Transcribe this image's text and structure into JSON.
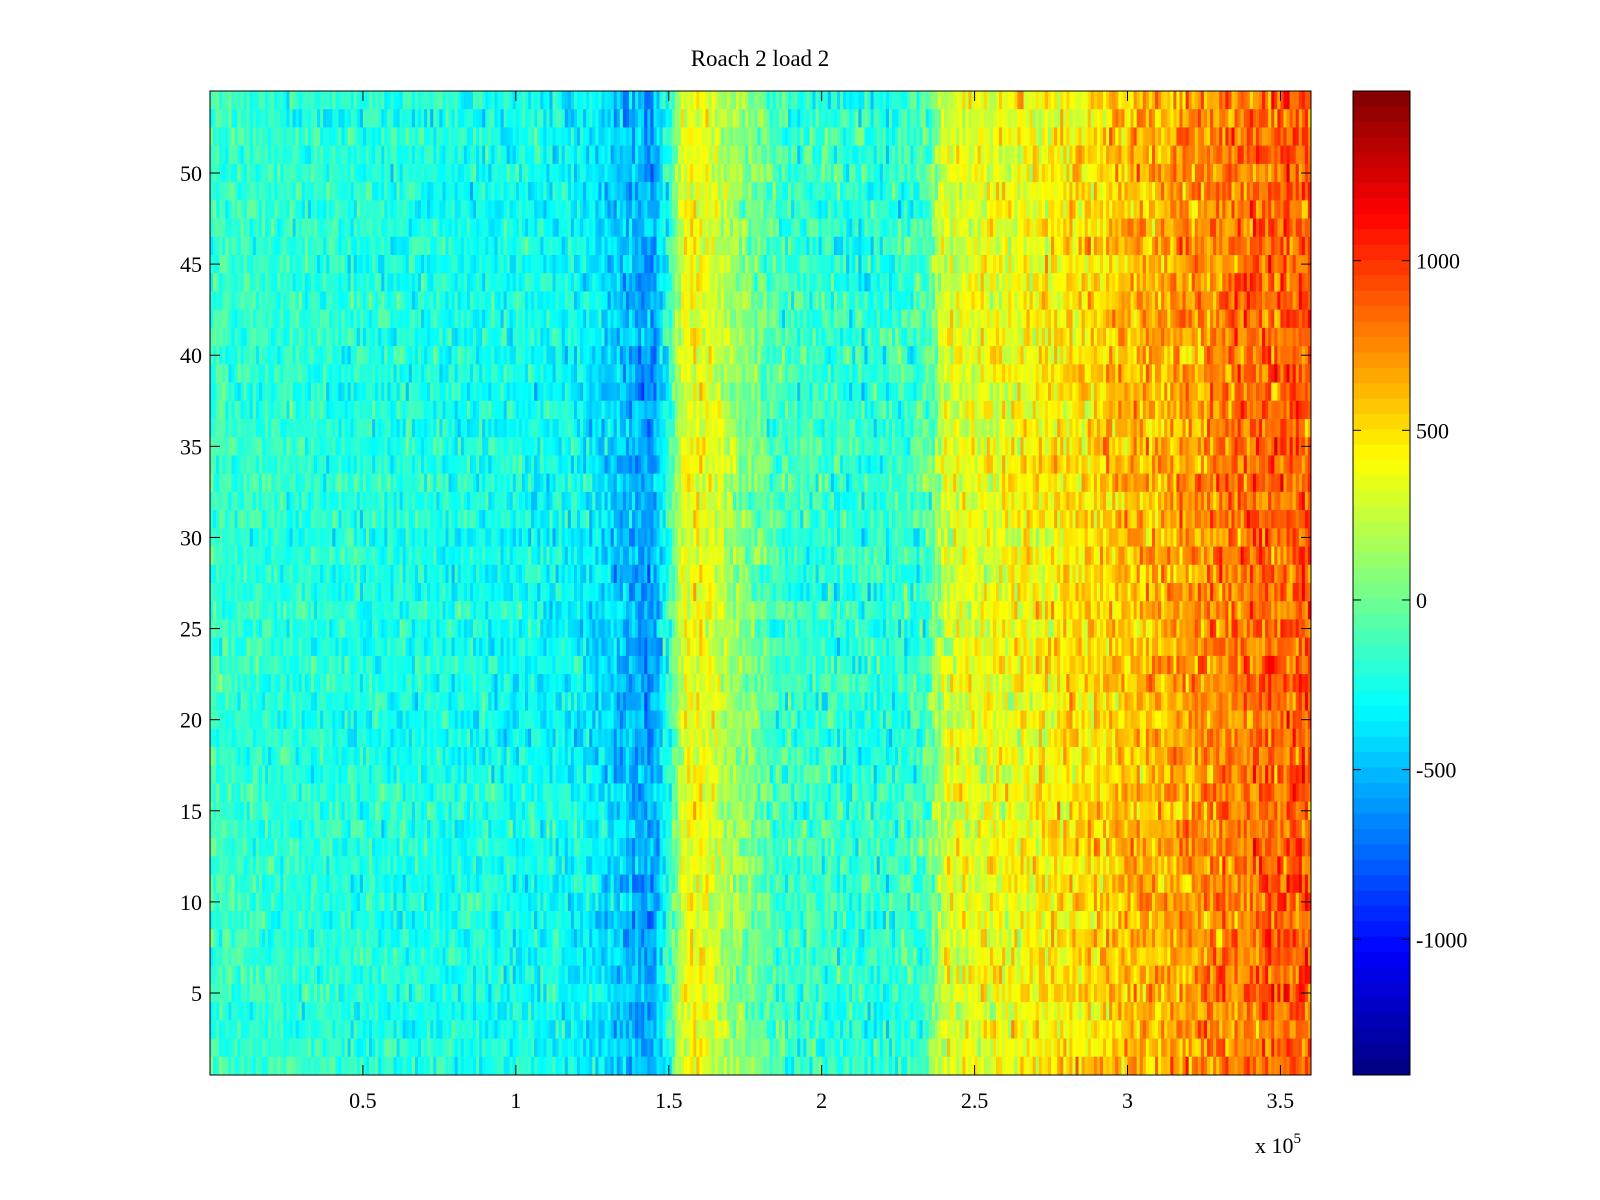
{
  "chart_data": {
    "type": "heatmap",
    "title": "Roach 2 load 2",
    "xlabel": "",
    "ylabel": "",
    "x_exponent_label": "x 10",
    "x_exponent_power": "5",
    "xlim": [
      0,
      3.6
    ],
    "ylim": [
      0.5,
      54.5
    ],
    "xticks": [
      0.5,
      1,
      1.5,
      2,
      2.5,
      3,
      3.5
    ],
    "xtick_labels": [
      "0.5",
      "1",
      "1.5",
      "2",
      "2.5",
      "3",
      "3.5"
    ],
    "yticks": [
      5,
      10,
      15,
      20,
      25,
      30,
      35,
      40,
      45,
      50
    ],
    "ytick_labels": [
      "5",
      "10",
      "15",
      "20",
      "25",
      "30",
      "35",
      "40",
      "45",
      "50"
    ],
    "rows": 54,
    "colormap": "jet",
    "clim": [
      -1400,
      1500
    ],
    "colorbar_ticks": [
      1000,
      500,
      0,
      -500,
      -1000
    ],
    "colorbar_tick_labels": [
      "1000",
      "500",
      "0",
      "-500",
      "-1000"
    ],
    "profile": [
      {
        "x": 0.0,
        "mean": -150
      },
      {
        "x": 0.3,
        "mean": -200
      },
      {
        "x": 0.6,
        "mean": -230
      },
      {
        "x": 0.9,
        "mean": -260
      },
      {
        "x": 1.2,
        "mean": -300
      },
      {
        "x": 1.35,
        "mean": -480
      },
      {
        "x": 1.45,
        "mean": -600
      },
      {
        "x": 1.5,
        "mean": -200
      },
      {
        "x": 1.55,
        "mean": 350
      },
      {
        "x": 1.6,
        "mean": 400
      },
      {
        "x": 1.7,
        "mean": 150
      },
      {
        "x": 1.85,
        "mean": -120
      },
      {
        "x": 2.0,
        "mean": -180
      },
      {
        "x": 2.2,
        "mean": -220
      },
      {
        "x": 2.35,
        "mean": -100
      },
      {
        "x": 2.4,
        "mean": 300
      },
      {
        "x": 2.6,
        "mean": 380
      },
      {
        "x": 2.8,
        "mean": 470
      },
      {
        "x": 3.0,
        "mean": 580
      },
      {
        "x": 3.2,
        "mean": 700
      },
      {
        "x": 3.4,
        "mean": 820
      },
      {
        "x": 3.6,
        "mean": 900
      }
    ]
  }
}
